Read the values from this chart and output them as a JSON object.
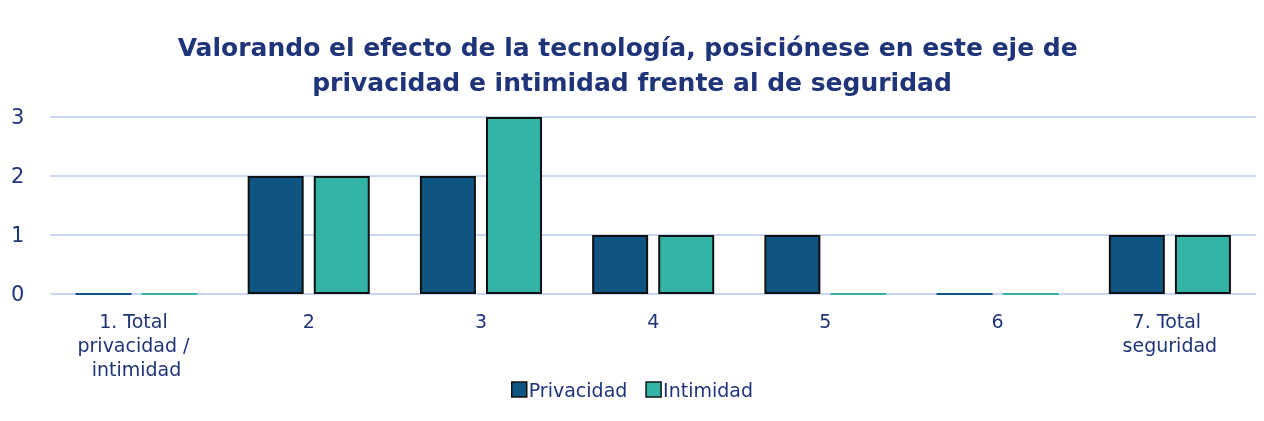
{
  "chart_data": {
    "type": "bar",
    "title": "Valorando el efecto de la tecnología, posiciónese en este eje de privacidad e intimidad frente al de seguridad",
    "categories": [
      "1. Total privacidad / intimidad",
      "2",
      "3",
      "4",
      "5",
      "6",
      "7. Total seguridad"
    ],
    "series": [
      {
        "name": "Privacidad",
        "color": "#0e5582",
        "values": [
          0,
          2,
          2,
          1,
          1,
          0,
          1
        ]
      },
      {
        "name": "Intimidad",
        "color": "#34b4a7",
        "values": [
          0,
          2,
          3,
          1,
          0,
          0,
          1
        ]
      }
    ],
    "ylim": [
      0,
      3
    ],
    "yticks": [
      0,
      1,
      2,
      3
    ],
    "grid": "y",
    "legend": "bottom"
  }
}
